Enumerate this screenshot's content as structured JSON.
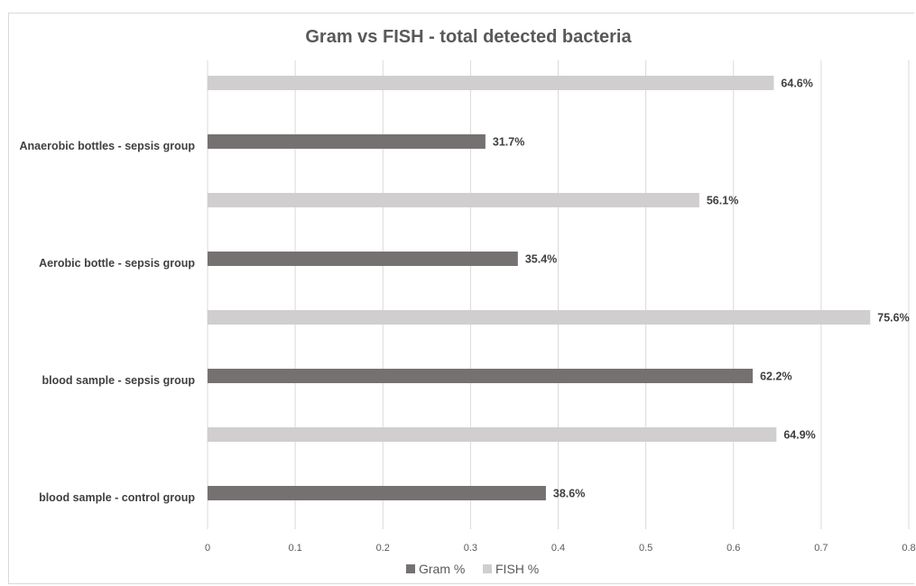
{
  "chart_data": {
    "type": "bar",
    "orientation": "horizontal",
    "title": "Gram vs FISH - total detected bacteria",
    "xlabel": "",
    "ylabel": "",
    "categories": [
      "Anaerobic bottles - sepsis group",
      "Aerobic bottle - sepsis group",
      "blood sample - sepsis group",
      "blood sample - control group"
    ],
    "series": [
      {
        "name": "Gram %",
        "color": "#767171",
        "values": [
          0.317,
          0.354,
          0.622,
          0.386
        ],
        "labels": [
          "31.7%",
          "35.4%",
          "62.2%",
          "38.6%"
        ]
      },
      {
        "name": "FISH %",
        "color": "#d0cece",
        "values": [
          0.646,
          0.561,
          0.756,
          0.649
        ],
        "labels": [
          "64.6%",
          "56.1%",
          "75.6%",
          "64.9%"
        ]
      }
    ],
    "xlim": [
      0,
      0.8
    ],
    "x_ticks": [
      "0",
      "0.1",
      "0.2",
      "0.3",
      "0.4",
      "0.5",
      "0.6",
      "0.7",
      "0.8"
    ],
    "grid": "vertical",
    "legend_position": "bottom"
  }
}
